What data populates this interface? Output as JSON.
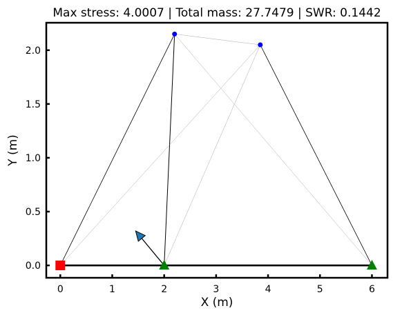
{
  "chart_data": {
    "type": "scatter",
    "title": "Max stress: 4.0007 | Total mass: 27.7479 | SWR: 0.1442",
    "xlabel": "X (m)",
    "ylabel": "Y (m)",
    "xlim": [
      -0.27,
      6.3
    ],
    "ylim": [
      -0.115,
      2.255
    ],
    "x_ticks": [
      0,
      1,
      2,
      3,
      4,
      5,
      6
    ],
    "x_tick_labels": [
      "0",
      "1",
      "2",
      "3",
      "4",
      "5",
      "6"
    ],
    "y_ticks": [
      0.0,
      0.5,
      1.0,
      1.5,
      2.0
    ],
    "y_tick_labels": [
      "0.0",
      "0.5",
      "1.0",
      "1.5",
      "2.0"
    ],
    "grid": false,
    "nodes": [
      {
        "x": 0.0,
        "y": 0.0,
        "marker": "square",
        "color": "#ff0000"
      },
      {
        "x": 2.0,
        "y": 0.0,
        "marker": "triangle",
        "color": "#008000"
      },
      {
        "x": 6.0,
        "y": 0.0,
        "marker": "triangle",
        "color": "#008000"
      },
      {
        "x": 2.2,
        "y": 2.15,
        "marker": "circle",
        "color": "#0000ff"
      },
      {
        "x": 3.85,
        "y": 2.05,
        "marker": "circle",
        "color": "#0000ff"
      }
    ],
    "members": [
      {
        "from": [
          0.0,
          0.0
        ],
        "to": [
          6.0,
          0.0
        ],
        "width": 2.6,
        "color": "#000000"
      },
      {
        "from": [
          0.0,
          0.0
        ],
        "to": [
          2.2,
          2.15
        ],
        "width": 0.8,
        "color": "#000000"
      },
      {
        "from": [
          2.0,
          0.0
        ],
        "to": [
          2.2,
          2.15
        ],
        "width": 1.0,
        "color": "#000000"
      },
      {
        "from": [
          2.2,
          2.15
        ],
        "to": [
          6.0,
          0.0
        ],
        "width": 0.5,
        "color": "#aaaaaa"
      },
      {
        "from": [
          2.2,
          2.15
        ],
        "to": [
          3.85,
          2.05
        ],
        "width": 0.5,
        "color": "#aaaaaa"
      },
      {
        "from": [
          0.0,
          0.0
        ],
        "to": [
          3.85,
          2.05
        ],
        "width": 0.5,
        "color": "#aaaaaa"
      },
      {
        "from": [
          2.0,
          0.0
        ],
        "to": [
          3.85,
          2.05
        ],
        "width": 0.5,
        "color": "#aaaaaa"
      },
      {
        "from": [
          3.85,
          2.05
        ],
        "to": [
          6.0,
          0.0
        ],
        "width": 0.8,
        "color": "#000000"
      }
    ],
    "load": {
      "from": [
        2.0,
        0.0
      ],
      "to": [
        1.45,
        0.32
      ],
      "color": "#1f77b4"
    }
  }
}
